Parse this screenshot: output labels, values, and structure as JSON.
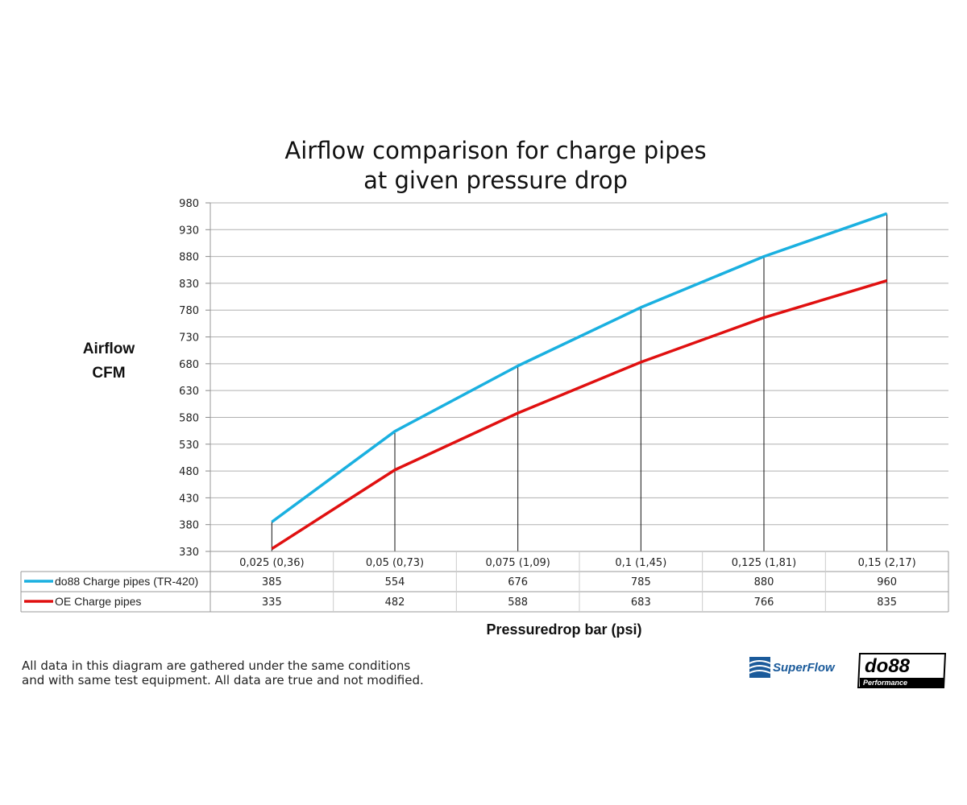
{
  "chart_data": {
    "type": "line",
    "title": [
      "Airflow comparison for charge pipes",
      "at given pressure drop"
    ],
    "ylabel": [
      "Airflow",
      "CFM"
    ],
    "xlabel": "Pressuredrop bar (psi)",
    "categories": [
      "0,025 (0,36)",
      "0,05 (0,73)",
      "0,075 (1,09)",
      "0,1 (1,45)",
      "0,125 (1,81)",
      "0,15 (2,17)"
    ],
    "ylim": [
      330,
      980
    ],
    "yticks": [
      330,
      380,
      430,
      480,
      530,
      580,
      630,
      680,
      730,
      780,
      830,
      880,
      930,
      980
    ],
    "grid": true,
    "legend": "data-table",
    "drop_lines": true,
    "series": [
      {
        "name": "do88 Charge pipes (TR-420)",
        "color": "#1ab0e0",
        "values": [
          385,
          554,
          676,
          785,
          880,
          960
        ]
      },
      {
        "name": "OE Charge pipes",
        "color": "#e01010",
        "values": [
          335,
          482,
          588,
          683,
          766,
          835
        ]
      }
    ]
  },
  "note": [
    "All data in this diagram are gathered under the same conditions",
    "and with same test equipment. All data are true and not modified."
  ],
  "logos": {
    "superflow": "SuperFlow",
    "do88": "do88",
    "do88_sub": "Performance"
  }
}
